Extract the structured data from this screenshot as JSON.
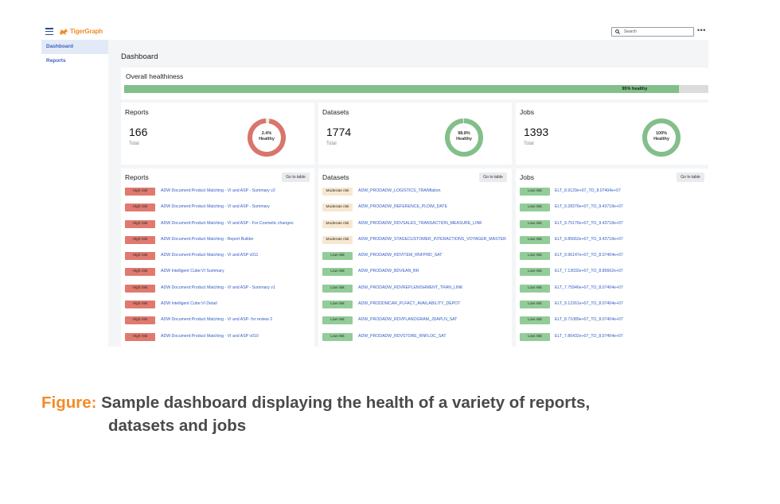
{
  "app": {
    "logo_text": "TigerGraph",
    "search_placeholder": "Search",
    "more_glyph": "•••",
    "menu_icon": "hamburger-menu-icon",
    "search_icon": "magnifier-icon"
  },
  "sidebar": {
    "items": [
      {
        "label": "Dashboard",
        "active": true
      },
      {
        "label": "Reports",
        "active": false
      }
    ]
  },
  "page_title": "Dashboard",
  "health": {
    "title": "Overall healthiness",
    "percent": 95,
    "label": "95% healthy"
  },
  "stats": [
    {
      "title": "Reports",
      "total": "166",
      "total_label": "Total",
      "healthy_percent": 2.4,
      "donut_value": "2.4%",
      "donut_label": "Healthy"
    },
    {
      "title": "Datasets",
      "total": "1774",
      "total_label": "Total",
      "healthy_percent": 98.8,
      "donut_value": "98.8%",
      "donut_label": "Healthy"
    },
    {
      "title": "Jobs",
      "total": "1393",
      "total_label": "Total",
      "healthy_percent": 100,
      "donut_value": "100%",
      "donut_label": "Healthy"
    }
  ],
  "lists": [
    {
      "title": "Reports",
      "button": "Go to table",
      "rows": [
        {
          "risk": "High risk",
          "name": "ADW Document:Product Matching - VI and ASP - Summary v2"
        },
        {
          "risk": "High risk",
          "name": "ADW Document:Product Matching - VI and ASP - Summary"
        },
        {
          "risk": "High risk",
          "name": "ADW Document:Product Matching - VI and ASP - For Cosmetic changes"
        },
        {
          "risk": "High risk",
          "name": "ADW Document:Product Matching - Report Builder"
        },
        {
          "risk": "High risk",
          "name": "ADW Document:Product Matching - VI and ASP v011"
        },
        {
          "risk": "High risk",
          "name": "ADW Intelligent Cube:VI Summary"
        },
        {
          "risk": "High risk",
          "name": "ADW Document:Product Matching - VI and ASP - Summary v1"
        },
        {
          "risk": "High risk",
          "name": "ADW Intelligent Cube:VI Detail"
        },
        {
          "risk": "High risk",
          "name": "ADW Document:Product Matching - VI and ASP- for review 2"
        },
        {
          "risk": "High risk",
          "name": "ADW Document:Product Matching - VI and ASP v010"
        }
      ]
    },
    {
      "title": "Datasets",
      "button": "Go to table",
      "rows": [
        {
          "risk": "Moderate risk",
          "name": "ADW_PRODADW_LOGISTICS_TRANflation"
        },
        {
          "risk": "Moderate risk",
          "name": "ADW_PRODADW_REFERENCE_PLDIM_DATE"
        },
        {
          "risk": "Moderate risk",
          "name": "ADW_PRODADW_RDVSALES_TRANSACTION_MEASURE_LINK"
        },
        {
          "risk": "Moderate risk",
          "name": "ADW_PRODADW_STAGECUSTOMER_INTERACTIONS_VOYAGER_MASTER"
        },
        {
          "risk": "Low risk",
          "name": "ADW_PRODADW_RDVITEM_RNFPRD_SAT"
        },
        {
          "risk": "Low risk",
          "name": "ADW_PRODADW_BDVEAN_BR"
        },
        {
          "risk": "Low risk",
          "name": "ADW_PRODADW_RDVREPLENISHMENT_TRAN_LINK"
        },
        {
          "risk": "Low risk",
          "name": "ADW_PRODDMCAR_PLFACT_AVAILABILITY_DEPOT"
        },
        {
          "risk": "Low risk",
          "name": "ADW_PRODADW_RDVPLANOGRAM_JDAPLN_SAT"
        },
        {
          "risk": "Low risk",
          "name": "ADW_PRODADW_RDVSTORE_RNFLOC_SAT"
        }
      ]
    },
    {
      "title": "Jobs",
      "button": "Go to table",
      "rows": [
        {
          "risk": "Low risk",
          "name": "ELT_8.9129e+07_TO_8.07404e+07"
        },
        {
          "risk": "Low risk",
          "name": "ELT_9.28376e+07_TO_9.43718e+07"
        },
        {
          "risk": "Low risk",
          "name": "ELT_9.75176e+07_TO_9.43718e+07"
        },
        {
          "risk": "Low risk",
          "name": "ELT_9.85662e+07_TO_9.43718e+07"
        },
        {
          "risk": "Low risk",
          "name": "ELT_9.96147e+07_TO_8.07404e+07"
        },
        {
          "risk": "Low risk",
          "name": "ELT_7.13032e+07_TO_8.85662e+07"
        },
        {
          "risk": "Low risk",
          "name": "ELT_7.75946e+07_TO_8.07404e+07"
        },
        {
          "risk": "Low risk",
          "name": "ELT_9.12261e+07_TO_8.07404e+07"
        },
        {
          "risk": "Low risk",
          "name": "ELT_8.71089e+07_TO_8.07404e+07"
        },
        {
          "risk": "Low risk",
          "name": "ELT_7.86432e+07_TO_8.07404e+07"
        }
      ]
    }
  ],
  "colors": {
    "healthy": "#82bf8a",
    "unhealthy": "#d9756b",
    "track": "#e8ecd9",
    "high_risk": "#e07a70",
    "moderate_risk": "#f8e7cf",
    "low_risk": "#93cc98",
    "caption_accent": "#f28c28",
    "caption_text": "#4a4a4a"
  },
  "caption": {
    "label": "Figure:",
    "line1": "Sample dashboard displaying the health of a variety of reports,",
    "line2": "datasets and jobs"
  }
}
